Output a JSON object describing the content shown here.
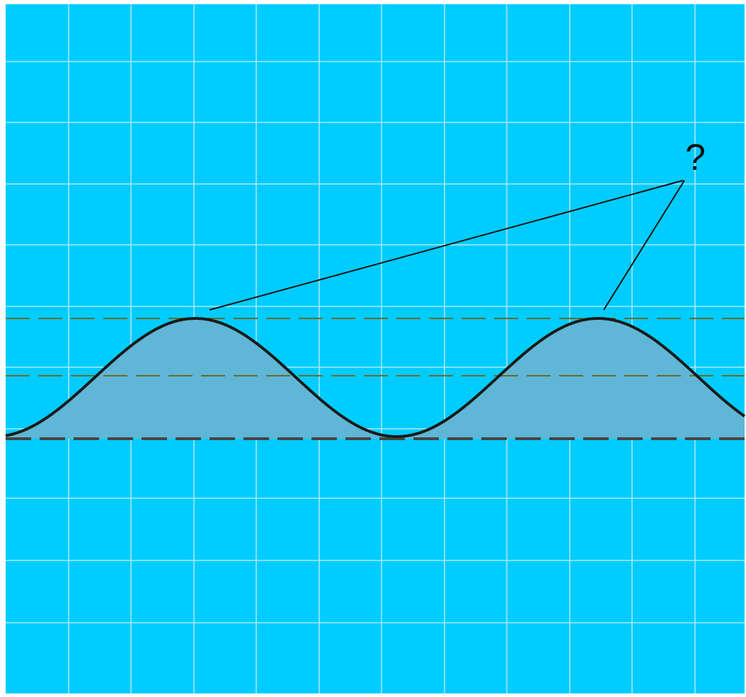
{
  "diagram": {
    "annotation_label": "?",
    "colors": {
      "background": "#00ccff",
      "grid": "#aee8f7",
      "fill": "#5fb6d6",
      "curve": "#1a1a1a",
      "dash_upper": "#6b6a2a",
      "dash_baseline": "#444444",
      "pointer": "#111111",
      "frame": "#ffffff"
    },
    "icons": [
      "question-mark"
    ]
  }
}
